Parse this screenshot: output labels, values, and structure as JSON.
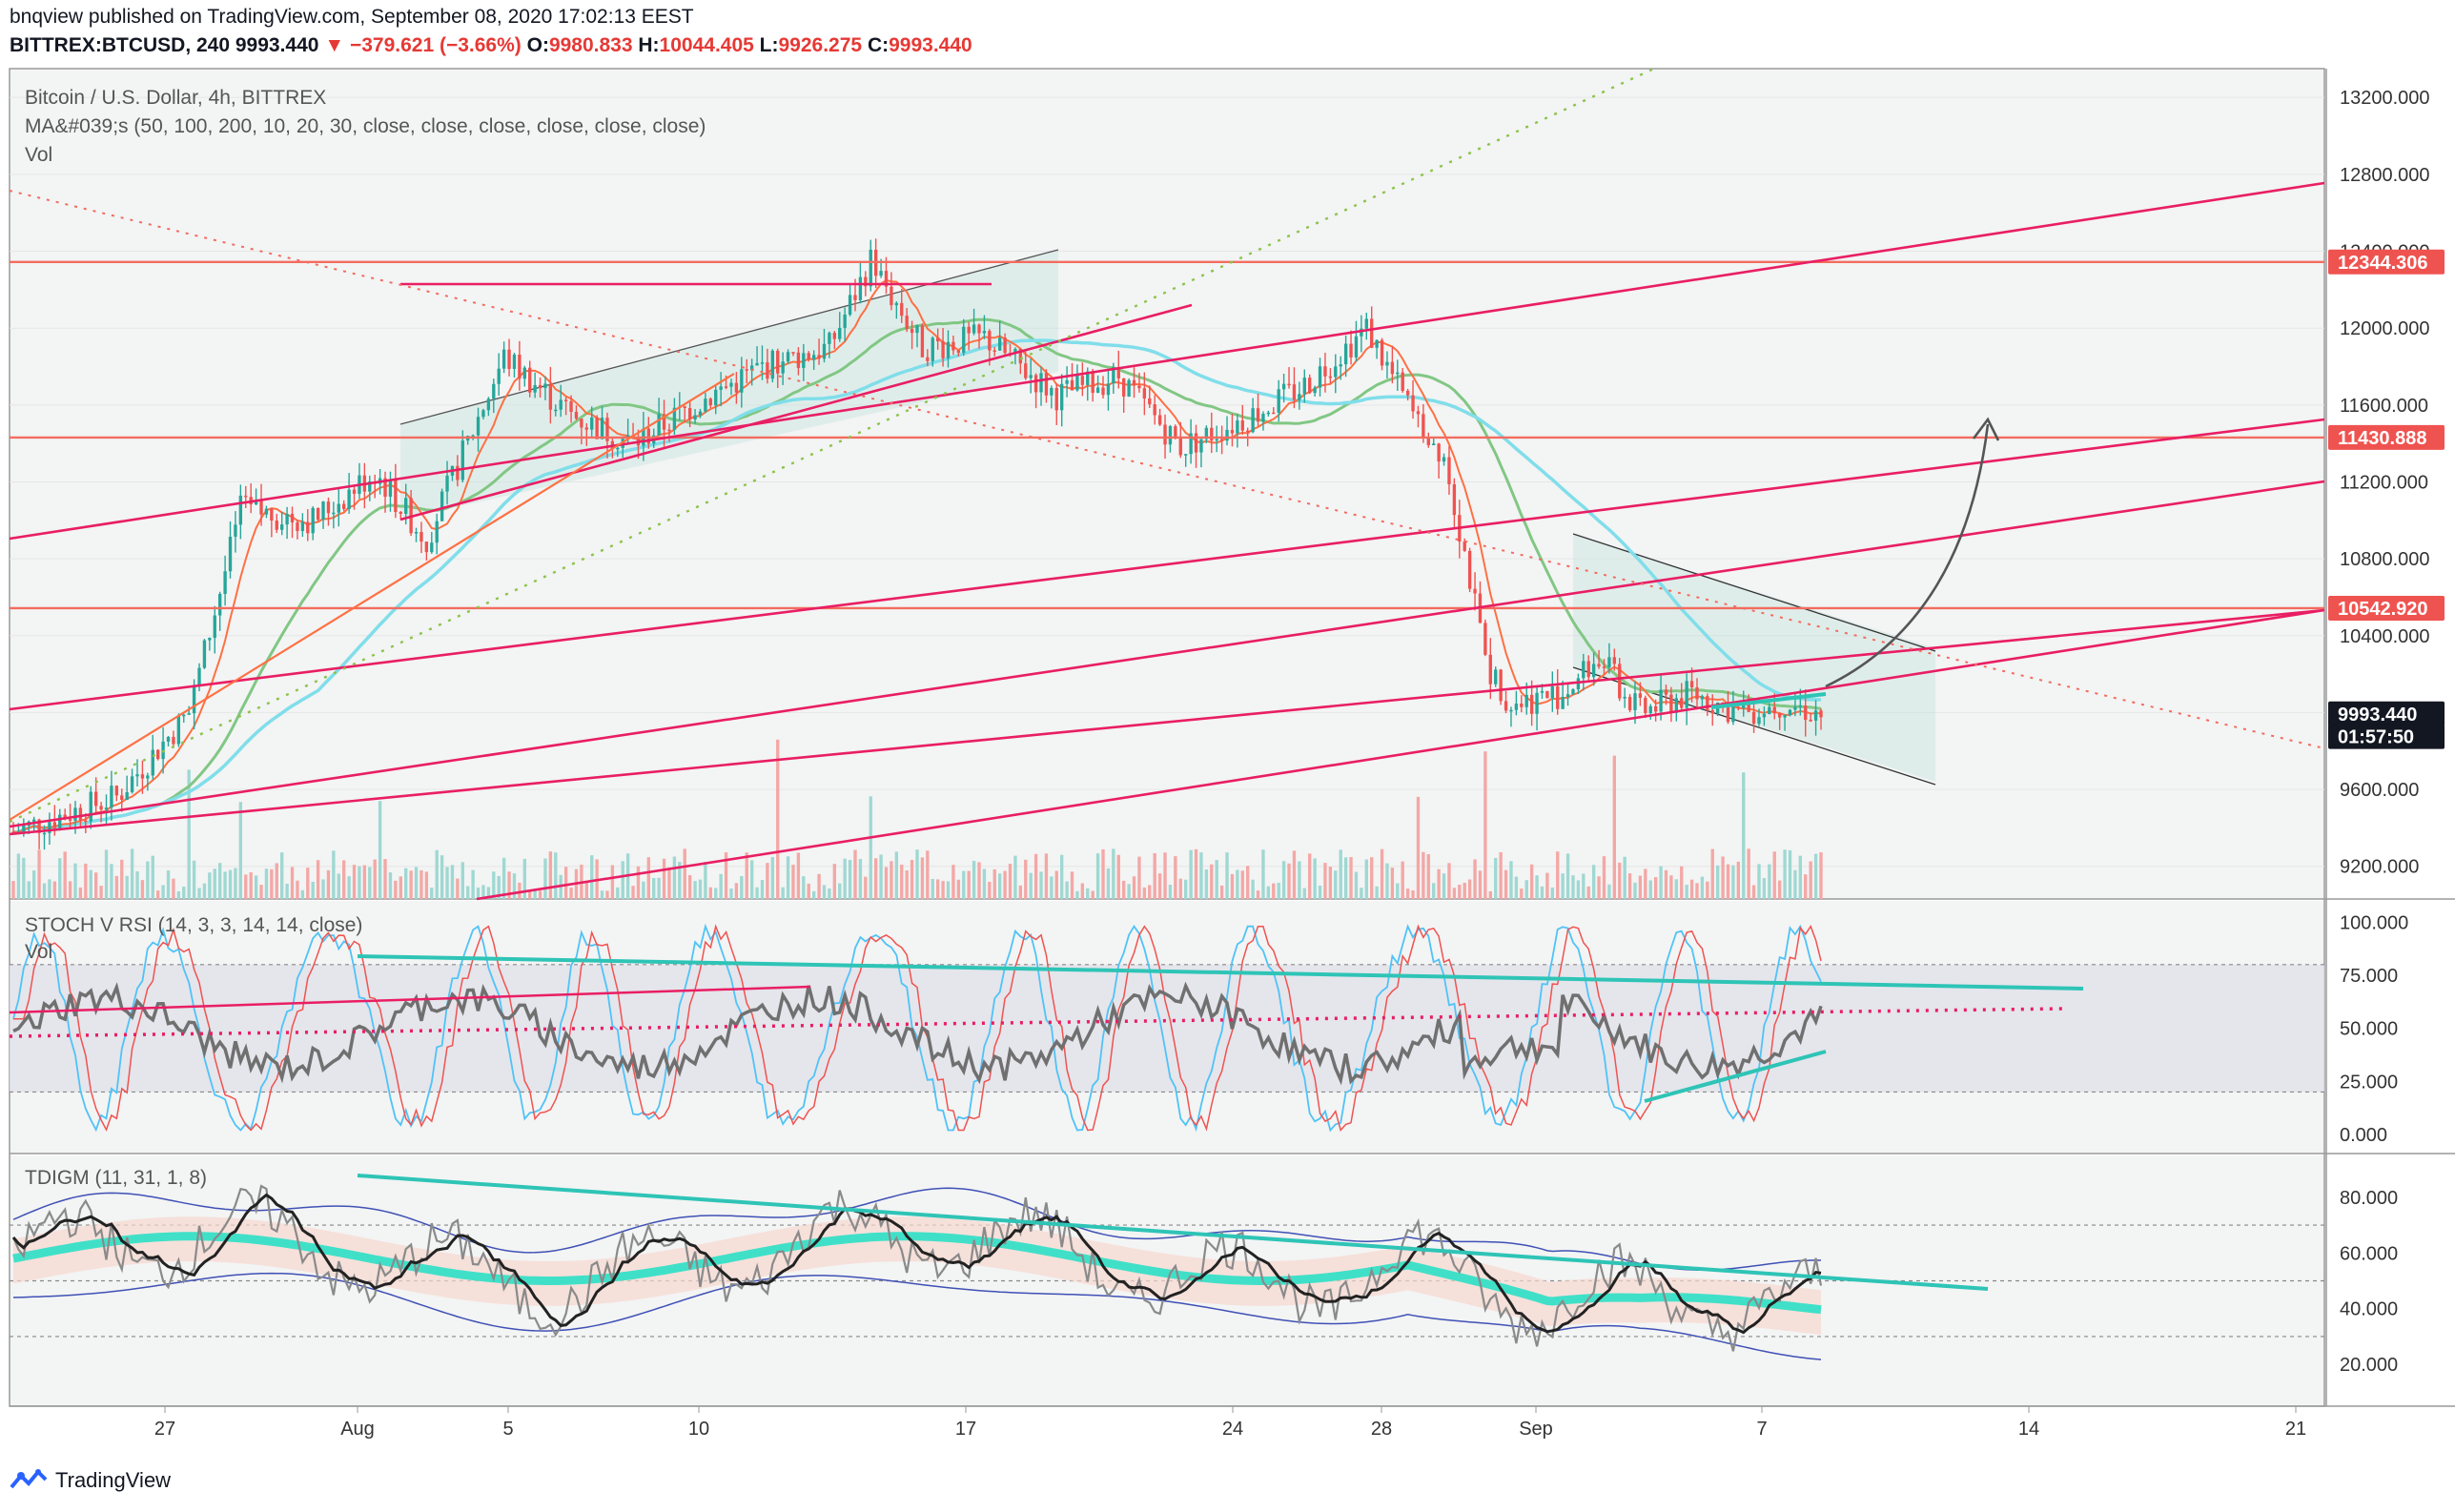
{
  "header": {
    "published": "bnqview published on TradingView.com, September 08, 2020 17:02:13 EEST",
    "symbol": "BITTREX:BTCUSD, 240",
    "last": "9993.440",
    "change": "−379.621 (−3.66%)",
    "o_label": "O:",
    "o_value": "9980.833",
    "h_label": "H:",
    "h_value": "10044.405",
    "l_label": "L:",
    "l_value": "9926.275",
    "c_label": "C:",
    "c_value": "9993.440"
  },
  "main_pane": {
    "title": "Bitcoin / U.S. Dollar, 4h, BITTREX",
    "ma_legend": "MA&#039;s (50, 100, 200, 10, 20, 30, close, close, close, close, close, close)",
    "vol_legend": "Vol"
  },
  "stoch_pane": {
    "title": "STOCH V RSI (14, 3, 3, 14, 14, close)",
    "vol_legend": "Vol"
  },
  "tdi_pane": {
    "title": "TDIGM (11, 31, 1, 8)"
  },
  "footer": {
    "brand": "TradingView"
  },
  "chart_data": [
    {
      "type": "candlestick",
      "title": "Bitcoin / U.S. Dollar, 4h, BITTREX",
      "y_ticks": [
        "13200.000",
        "12800.000",
        "12400.000",
        "12000.000",
        "11600.000",
        "11200.000",
        "10800.000",
        "10400.000",
        "10000.000",
        "9600.000",
        "9200.000"
      ],
      "x_ticks": [
        "27",
        "Aug",
        "5",
        "10",
        "17",
        "24",
        "28",
        "Sep",
        "7",
        "14",
        "21"
      ],
      "price_markers": [
        {
          "label": "12344.306",
          "value": 12344.306,
          "color": "#ef5350"
        },
        {
          "label": "11430.888",
          "value": 11430.888,
          "color": "#ef5350"
        },
        {
          "label": "10542.920",
          "value": 10542.92,
          "color": "#ef5350"
        },
        {
          "label": "9993.440",
          "value": 9993.44,
          "color": "#131722"
        },
        {
          "label": "01:57:50",
          "value": 9875,
          "color": "#131722"
        }
      ],
      "horizontal_levels": [
        12344.306,
        11430.888,
        10542.92
      ],
      "last_price": 9993.44,
      "colors": {
        "up": "#26a69a",
        "down": "#ef5350",
        "trend": "#e91e63",
        "accent": "#2ec4b6",
        "ma_green": "#81c784",
        "ma_cyan": "#80deea"
      }
    },
    {
      "type": "line",
      "title": "STOCH V RSI (14, 3, 3, 14, 14, close)",
      "y_ticks": [
        "100.000",
        "75.000",
        "50.000",
        "25.000",
        "0.000"
      ],
      "ylim": [
        0,
        100
      ],
      "bands": [
        20,
        80
      ]
    },
    {
      "type": "line",
      "title": "TDIGM (11, 31, 1, 8)",
      "y_ticks": [
        "80.000",
        "60.000",
        "40.000",
        "20.000"
      ],
      "ylim": [
        10,
        95
      ],
      "levels": [
        30,
        50,
        70
      ]
    }
  ]
}
